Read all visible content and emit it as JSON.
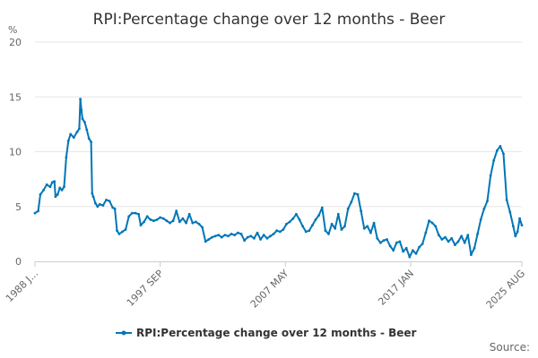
{
  "chart_data": {
    "type": "line",
    "title": "RPI:Percentage change over 12 months - Beer",
    "y_unit": "%",
    "ylim": [
      0,
      20
    ],
    "y_ticks": [
      0,
      5,
      10,
      15,
      20
    ],
    "x_range": [
      "1988-01",
      "2025-08"
    ],
    "x_ticks": [
      {
        "date": "1988-01",
        "label": "1988 J..."
      },
      {
        "date": "1997-09",
        "label": "1997 SEP"
      },
      {
        "date": "2007-05",
        "label": "2007 MAY"
      },
      {
        "date": "2017-01",
        "label": "2017 JAN"
      },
      {
        "date": "2025-08",
        "label": "2025 AUG"
      }
    ],
    "grid": true,
    "legend_position": "bottom",
    "color": "#0076b6",
    "series": [
      {
        "name": "RPI:Percentage change over 12 months - Beer",
        "points": [
          [
            "1988-01",
            4.4
          ],
          [
            "1988-04",
            4.6
          ],
          [
            "1988-06",
            6.1
          ],
          [
            "1988-09",
            6.5
          ],
          [
            "1988-12",
            7.0
          ],
          [
            "1989-03",
            6.8
          ],
          [
            "1989-05",
            7.2
          ],
          [
            "1989-07",
            7.3
          ],
          [
            "1989-08",
            5.9
          ],
          [
            "1989-10",
            6.1
          ],
          [
            "1989-12",
            6.7
          ],
          [
            "1990-02",
            6.5
          ],
          [
            "1990-04",
            6.8
          ],
          [
            "1990-06",
            9.5
          ],
          [
            "1990-08",
            11.0
          ],
          [
            "1990-10",
            11.6
          ],
          [
            "1991-01",
            11.3
          ],
          [
            "1991-04",
            11.8
          ],
          [
            "1991-06",
            12.1
          ],
          [
            "1991-07",
            14.8
          ],
          [
            "1991-08",
            13.8
          ],
          [
            "1991-09",
            13.0
          ],
          [
            "1991-11",
            12.7
          ],
          [
            "1992-01",
            12.0
          ],
          [
            "1992-03",
            11.2
          ],
          [
            "1992-05",
            10.9
          ],
          [
            "1992-06",
            6.2
          ],
          [
            "1992-07",
            5.9
          ],
          [
            "1992-09",
            5.3
          ],
          [
            "1992-11",
            5.0
          ],
          [
            "1993-01",
            5.2
          ],
          [
            "1993-04",
            5.1
          ],
          [
            "1993-07",
            5.6
          ],
          [
            "1993-10",
            5.5
          ],
          [
            "1994-01",
            4.9
          ],
          [
            "1994-03",
            4.8
          ],
          [
            "1994-05",
            2.8
          ],
          [
            "1994-07",
            2.5
          ],
          [
            "1994-10",
            2.7
          ],
          [
            "1995-01",
            2.9
          ],
          [
            "1995-04",
            4.1
          ],
          [
            "1995-07",
            4.4
          ],
          [
            "1995-10",
            4.4
          ],
          [
            "1996-01",
            4.3
          ],
          [
            "1996-03",
            3.3
          ],
          [
            "1996-06",
            3.6
          ],
          [
            "1996-09",
            4.1
          ],
          [
            "1996-12",
            3.8
          ],
          [
            "1997-03",
            3.7
          ],
          [
            "1997-06",
            3.8
          ],
          [
            "1997-09",
            4.0
          ],
          [
            "1997-12",
            3.9
          ],
          [
            "1998-03",
            3.7
          ],
          [
            "1998-06",
            3.5
          ],
          [
            "1998-09",
            3.7
          ],
          [
            "1998-12",
            4.6
          ],
          [
            "1999-03",
            3.6
          ],
          [
            "1999-06",
            3.9
          ],
          [
            "1999-09",
            3.5
          ],
          [
            "1999-12",
            4.3
          ],
          [
            "2000-03",
            3.5
          ],
          [
            "2000-06",
            3.6
          ],
          [
            "2000-09",
            3.4
          ],
          [
            "2000-12",
            3.1
          ],
          [
            "2001-03",
            1.8
          ],
          [
            "2001-06",
            2.0
          ],
          [
            "2001-09",
            2.2
          ],
          [
            "2001-12",
            2.3
          ],
          [
            "2002-03",
            2.4
          ],
          [
            "2002-06",
            2.2
          ],
          [
            "2002-09",
            2.4
          ],
          [
            "2002-12",
            2.3
          ],
          [
            "2003-03",
            2.5
          ],
          [
            "2003-06",
            2.4
          ],
          [
            "2003-09",
            2.6
          ],
          [
            "2003-12",
            2.5
          ],
          [
            "2004-03",
            1.9
          ],
          [
            "2004-06",
            2.2
          ],
          [
            "2004-09",
            2.3
          ],
          [
            "2004-12",
            2.1
          ],
          [
            "2005-03",
            2.6
          ],
          [
            "2005-06",
            2.0
          ],
          [
            "2005-09",
            2.4
          ],
          [
            "2005-12",
            2.1
          ],
          [
            "2006-03",
            2.3
          ],
          [
            "2006-06",
            2.5
          ],
          [
            "2006-09",
            2.8
          ],
          [
            "2006-12",
            2.7
          ],
          [
            "2007-03",
            2.9
          ],
          [
            "2007-06",
            3.4
          ],
          [
            "2007-09",
            3.6
          ],
          [
            "2007-12",
            3.9
          ],
          [
            "2008-03",
            4.3
          ],
          [
            "2008-06",
            3.8
          ],
          [
            "2008-09",
            3.2
          ],
          [
            "2008-12",
            2.7
          ],
          [
            "2009-03",
            2.8
          ],
          [
            "2009-06",
            3.3
          ],
          [
            "2009-09",
            3.8
          ],
          [
            "2009-12",
            4.2
          ],
          [
            "2010-03",
            4.9
          ],
          [
            "2010-06",
            2.8
          ],
          [
            "2010-09",
            2.5
          ],
          [
            "2010-12",
            3.4
          ],
          [
            "2011-03",
            3.0
          ],
          [
            "2011-06",
            4.3
          ],
          [
            "2011-09",
            2.9
          ],
          [
            "2011-12",
            3.2
          ],
          [
            "2012-03",
            4.8
          ],
          [
            "2012-06",
            5.4
          ],
          [
            "2012-09",
            6.2
          ],
          [
            "2012-12",
            6.1
          ],
          [
            "2013-03",
            4.6
          ],
          [
            "2013-06",
            3.0
          ],
          [
            "2013-09",
            3.2
          ],
          [
            "2013-12",
            2.6
          ],
          [
            "2014-03",
            3.5
          ],
          [
            "2014-06",
            2.1
          ],
          [
            "2014-09",
            1.7
          ],
          [
            "2014-12",
            1.9
          ],
          [
            "2015-03",
            2.0
          ],
          [
            "2015-06",
            1.4
          ],
          [
            "2015-09",
            1.0
          ],
          [
            "2015-12",
            1.7
          ],
          [
            "2016-03",
            1.8
          ],
          [
            "2016-06",
            0.9
          ],
          [
            "2016-09",
            1.2
          ],
          [
            "2016-12",
            0.4
          ],
          [
            "2017-03",
            1.0
          ],
          [
            "2017-06",
            0.7
          ],
          [
            "2017-09",
            1.3
          ],
          [
            "2017-12",
            1.6
          ],
          [
            "2018-03",
            2.6
          ],
          [
            "2018-06",
            3.7
          ],
          [
            "2018-09",
            3.5
          ],
          [
            "2018-12",
            3.2
          ],
          [
            "2019-03",
            2.4
          ],
          [
            "2019-06",
            2.0
          ],
          [
            "2019-09",
            2.2
          ],
          [
            "2019-12",
            1.8
          ],
          [
            "2020-03",
            2.1
          ],
          [
            "2020-06",
            1.5
          ],
          [
            "2020-09",
            1.8
          ],
          [
            "2020-12",
            2.3
          ],
          [
            "2021-03",
            1.7
          ],
          [
            "2021-06",
            2.4
          ],
          [
            "2021-09",
            0.6
          ],
          [
            "2021-12",
            1.2
          ],
          [
            "2022-03",
            2.5
          ],
          [
            "2022-06",
            3.8
          ],
          [
            "2022-09",
            4.8
          ],
          [
            "2022-12",
            5.5
          ],
          [
            "2023-03",
            7.8
          ],
          [
            "2023-06",
            9.2
          ],
          [
            "2023-09",
            10.1
          ],
          [
            "2023-12",
            10.5
          ],
          [
            "2024-03",
            9.8
          ],
          [
            "2024-06",
            5.6
          ],
          [
            "2024-09",
            4.5
          ],
          [
            "2024-12",
            3.2
          ],
          [
            "2025-02",
            2.3
          ],
          [
            "2025-04",
            2.7
          ],
          [
            "2025-06",
            3.9
          ],
          [
            "2025-08",
            3.3
          ]
        ]
      }
    ]
  },
  "footer": {
    "source_label": "Source:"
  }
}
